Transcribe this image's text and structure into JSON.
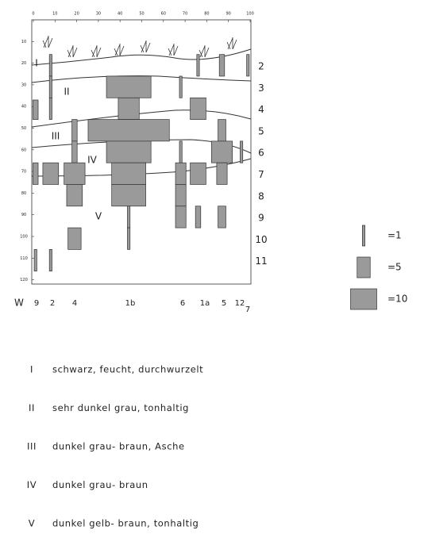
{
  "top_axis": {
    "ticks": [
      0,
      10,
      20,
      30,
      40,
      50,
      60,
      70,
      80,
      90,
      100
    ]
  },
  "depth_axis": {
    "ticks": [
      10,
      20,
      30,
      40,
      50,
      60,
      70,
      80,
      90,
      100,
      110,
      120
    ]
  },
  "layer_numbers": [
    2,
    3,
    4,
    5,
    6,
    7,
    8,
    9,
    10,
    11
  ],
  "horizons": [
    {
      "label": "I",
      "description": "schwarz, feucht, durchwurzelt"
    },
    {
      "label": "II",
      "description": "sehr dunkel grau, tonhaltig"
    },
    {
      "label": "III",
      "description": "dunkel grau- braun, Asche"
    },
    {
      "label": "IV",
      "description": "dunkel grau- braun"
    },
    {
      "label": "V",
      "description": "dunkel gelb- braun, tonhaltig"
    }
  ],
  "sites": {
    "label": "W",
    "columns": [
      "9",
      "2",
      "4",
      "1b",
      "6",
      "1a",
      "5",
      "12",
      "7"
    ]
  },
  "legend": [
    {
      "amount": 1,
      "label": "=1"
    },
    {
      "amount": 5,
      "label": "=5"
    },
    {
      "amount": 10,
      "label": "=10"
    }
  ],
  "bars": [
    {
      "x": 1,
      "top": 37,
      "bottom": 46,
      "amount": 2
    },
    {
      "x": 1,
      "top": 66,
      "bottom": 76,
      "amount": 2
    },
    {
      "x": 1,
      "top": 106,
      "bottom": 116,
      "amount": 1
    },
    {
      "x": 8,
      "top": 16,
      "bottom": 26,
      "amount": 1
    },
    {
      "x": 8,
      "top": 26,
      "bottom": 36,
      "amount": 1
    },
    {
      "x": 8,
      "top": 36,
      "bottom": 46,
      "amount": 1
    },
    {
      "x": 8,
      "top": 66,
      "bottom": 76,
      "amount": 6
    },
    {
      "x": 8,
      "top": 106,
      "bottom": 116,
      "amount": 1
    },
    {
      "x": 19,
      "top": 46,
      "bottom": 56,
      "amount": 2
    },
    {
      "x": 19,
      "top": 56,
      "bottom": 66,
      "amount": 2
    },
    {
      "x": 19,
      "top": 66,
      "bottom": 76,
      "amount": 8
    },
    {
      "x": 19,
      "top": 76,
      "bottom": 86,
      "amount": 6
    },
    {
      "x": 19,
      "top": 96,
      "bottom": 106,
      "amount": 5
    },
    {
      "x": 44,
      "top": 26,
      "bottom": 36,
      "amount": 17
    },
    {
      "x": 44,
      "top": 36,
      "bottom": 46,
      "amount": 8
    },
    {
      "x": 44,
      "top": 46,
      "bottom": 56,
      "amount": 31
    },
    {
      "x": 44,
      "top": 56,
      "bottom": 66,
      "amount": 17
    },
    {
      "x": 44,
      "top": 66,
      "bottom": 76,
      "amount": 13
    },
    {
      "x": 44,
      "top": 76,
      "bottom": 86,
      "amount": 13
    },
    {
      "x": 44,
      "top": 86,
      "bottom": 96,
      "amount": 1
    },
    {
      "x": 44,
      "top": 96,
      "bottom": 106,
      "amount": 1
    },
    {
      "x": 68,
      "top": 26,
      "bottom": 36,
      "amount": 1
    },
    {
      "x": 68,
      "top": 56,
      "bottom": 66,
      "amount": 1
    },
    {
      "x": 68,
      "top": 66,
      "bottom": 76,
      "amount": 4
    },
    {
      "x": 68,
      "top": 76,
      "bottom": 86,
      "amount": 4
    },
    {
      "x": 68,
      "top": 86,
      "bottom": 96,
      "amount": 4
    },
    {
      "x": 76,
      "top": 16,
      "bottom": 26,
      "amount": 1
    },
    {
      "x": 76,
      "top": 36,
      "bottom": 46,
      "amount": 6
    },
    {
      "x": 76,
      "top": 66,
      "bottom": 76,
      "amount": 6
    },
    {
      "x": 76,
      "top": 86,
      "bottom": 96,
      "amount": 2
    },
    {
      "x": 87,
      "top": 16,
      "bottom": 26,
      "amount": 2
    },
    {
      "x": 87,
      "top": 46,
      "bottom": 56,
      "amount": 3
    },
    {
      "x": 87,
      "top": 56,
      "bottom": 66,
      "amount": 8
    },
    {
      "x": 87,
      "top": 66,
      "bottom": 76,
      "amount": 4
    },
    {
      "x": 87,
      "top": 86,
      "bottom": 96,
      "amount": 3
    },
    {
      "x": 96,
      "top": 56,
      "bottom": 66,
      "amount": 1
    },
    {
      "x": 99,
      "top": 16,
      "bottom": 26,
      "amount": 1
    }
  ]
}
